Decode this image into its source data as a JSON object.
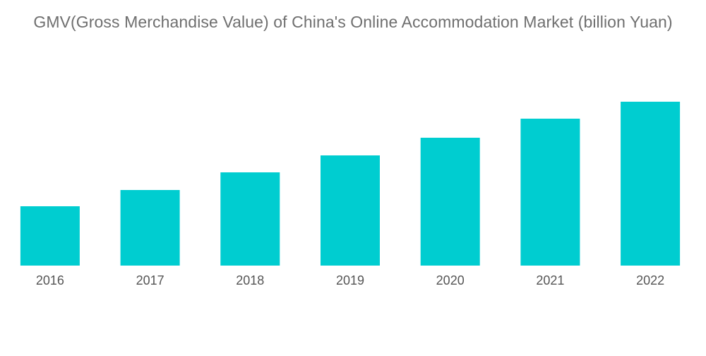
{
  "chart_data": {
    "type": "bar",
    "title": "GMV(Gross Merchandise Value) of China's Online Accommodation Market (billion Yuan)",
    "xlabel": "",
    "ylabel": "",
    "categories": [
      "2016",
      "2017",
      "2018",
      "2019",
      "2020",
      "2021",
      "2022"
    ],
    "values": [
      84,
      107,
      132,
      156,
      181,
      208,
      232
    ],
    "ylim": [
      0,
      232
    ],
    "grid": false,
    "legend": "none",
    "bar_color": "#00cdd0",
    "show_y_axis": false
  }
}
